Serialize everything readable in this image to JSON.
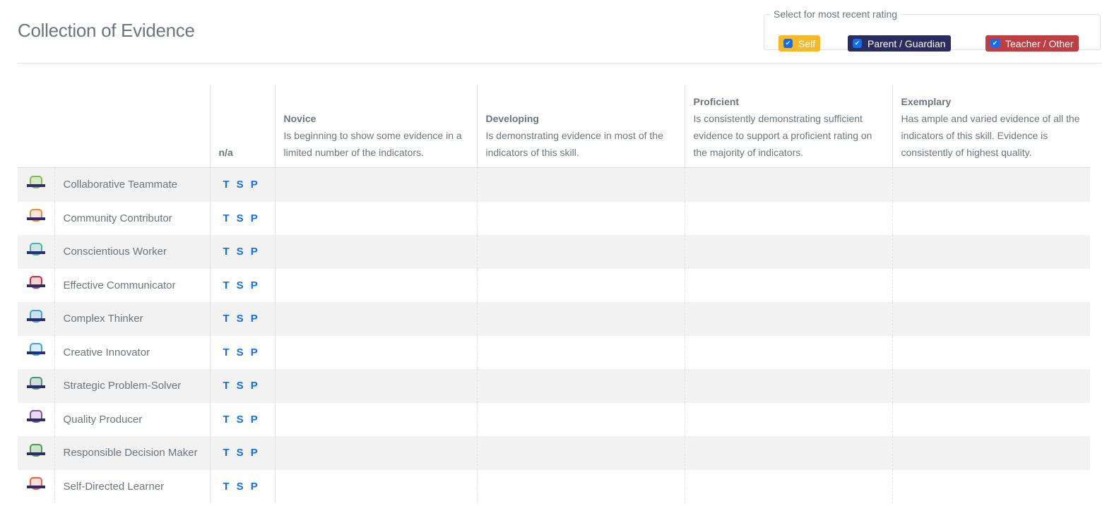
{
  "page_title": "Collection of Evidence",
  "filter": {
    "legend": "Select for most recent rating",
    "options": [
      {
        "label": "Self",
        "checked": true,
        "color": "#f7b82b"
      },
      {
        "label": "Parent / Guardian",
        "checked": true,
        "color": "#2b2d5e"
      },
      {
        "label": "Teacher / Other",
        "checked": true,
        "color": "#bd3f44"
      }
    ]
  },
  "table": {
    "headers": {
      "na": "n/a",
      "levels": [
        {
          "title": "Novice",
          "desc": "Is beginning to show some evidence in a limited number of the indicators."
        },
        {
          "title": "Developing",
          "desc": "Is demonstrating evidence in most of the indicators of this skill."
        },
        {
          "title": "Proficient",
          "desc": "Is consistently demonstrating sufficient evidence to support a proficient rating on the majority of indicators."
        },
        {
          "title": "Exemplary",
          "desc": "Has ample and varied evidence of all the indicators of this skill. Evidence is consistently of highest quality."
        }
      ]
    },
    "rater_labels": [
      "T",
      "S",
      "P"
    ],
    "rows": [
      {
        "name": "Collaborative Teammate",
        "icon": "collaborative-teammate-badge-icon",
        "color": "#7cbf44"
      },
      {
        "name": "Community Contributor",
        "icon": "community-contributor-badge-icon",
        "color": "#f0883a"
      },
      {
        "name": "Conscientious Worker",
        "icon": "conscientious-worker-badge-icon",
        "color": "#3fb8a8"
      },
      {
        "name": "Effective Communicator",
        "icon": "effective-communicator-badge-icon",
        "color": "#d6283e"
      },
      {
        "name": "Complex Thinker",
        "icon": "complex-thinker-badge-icon",
        "color": "#3aa3de"
      },
      {
        "name": "Creative Innovator",
        "icon": "creative-innovator-badge-icon",
        "color": "#3aa3de"
      },
      {
        "name": "Strategic Problem-Solver",
        "icon": "strategic-problem-solver-badge-icon",
        "color": "#4e8f7c"
      },
      {
        "name": "Quality Producer",
        "icon": "quality-producer-badge-icon",
        "color": "#7b55a3"
      },
      {
        "name": "Responsible Decision Maker",
        "icon": "responsible-decision-maker-badge-icon",
        "color": "#4a9b4a"
      },
      {
        "name": "Self-Directed Learner",
        "icon": "self-directed-learner-badge-icon",
        "color": "#ee6040"
      }
    ]
  }
}
